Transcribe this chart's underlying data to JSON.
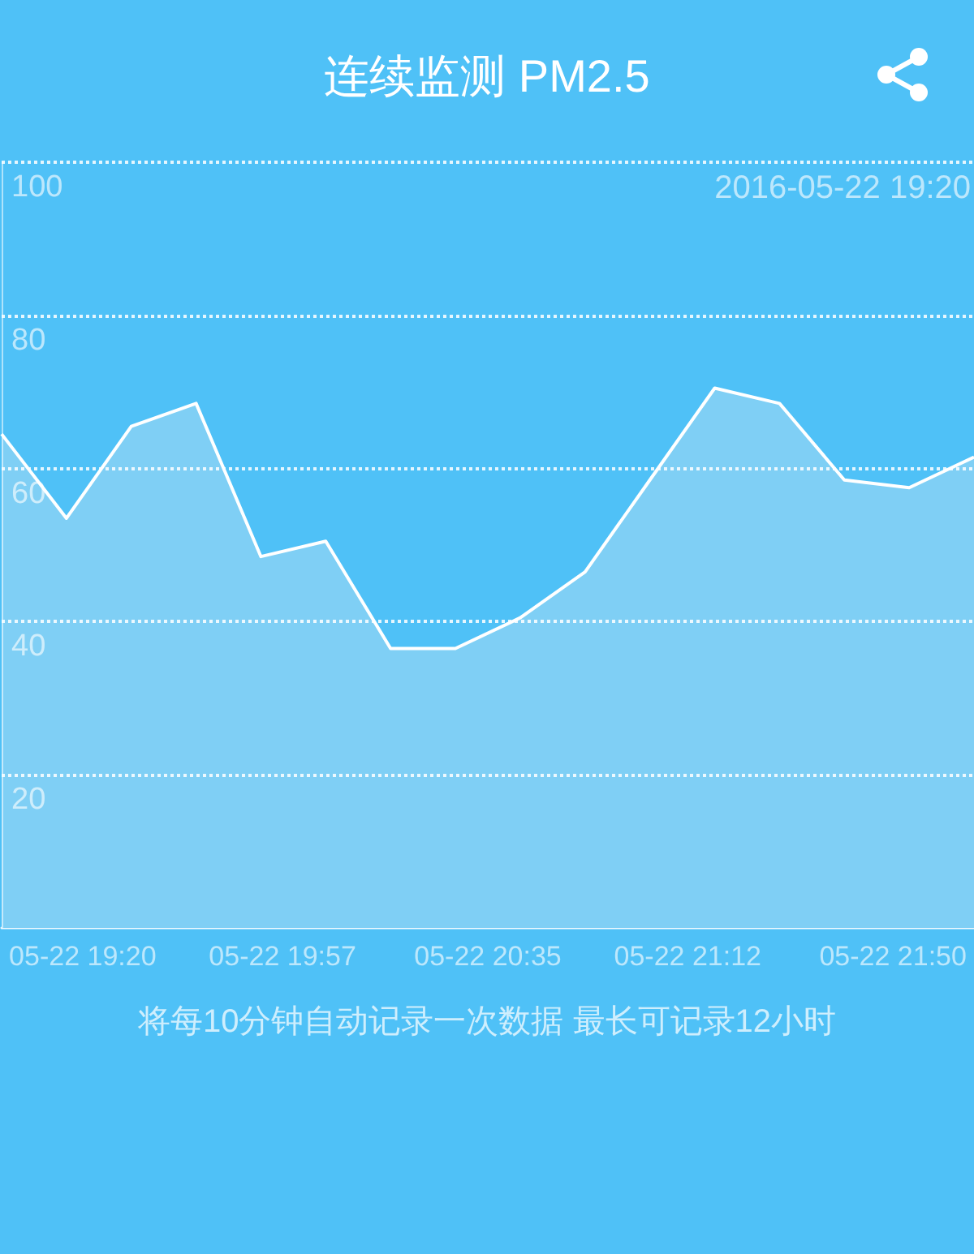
{
  "chart_data": {
    "type": "area",
    "title": "连续监测 PM2.5",
    "annotations": [
      "2016-05-22 19:20",
      "将每10分钟自动记录一次数据 最长可记录12小时"
    ],
    "x": [
      "2016-05-22T19:05",
      "2016-05-22T19:17",
      "2016-05-22T19:29",
      "2016-05-22T19:41",
      "2016-05-22T19:53",
      "2016-05-22T20:05",
      "2016-05-22T20:17",
      "2016-05-22T20:29",
      "2016-05-22T20:41",
      "2016-05-22T20:53",
      "2016-05-22T21:05",
      "2016-05-22T21:17",
      "2016-05-22T21:29",
      "2016-05-22T21:41",
      "2016-05-22T21:53",
      "2016-05-22T22:05"
    ],
    "values": [
      64.5,
      53.5,
      65.5,
      68.5,
      48.5,
      50.5,
      36.5,
      36.5,
      40.5,
      46.5,
      58.5,
      70.5,
      68.5,
      58.5,
      57.5,
      61.5
    ],
    "color": "#7fcff5",
    "xlim": [
      "2016-05-22T19:05",
      "2016-05-22T22:05"
    ],
    "xticks": [
      {
        "value": "2016-05-22T19:20",
        "label": "05-22 19:20"
      },
      {
        "value": "2016-05-22T19:57",
        "label": "05-22 19:57"
      },
      {
        "value": "2016-05-22T20:35",
        "label": "05-22 20:35"
      },
      {
        "value": "2016-05-22T21:12",
        "label": "05-22 21:12"
      },
      {
        "value": "2016-05-22T21:50",
        "label": "05-22 21:50"
      }
    ],
    "ylim": [
      0,
      100
    ],
    "yticks": [
      20,
      40,
      60,
      80,
      100
    ],
    "grid": "y",
    "marker": "none"
  }
}
